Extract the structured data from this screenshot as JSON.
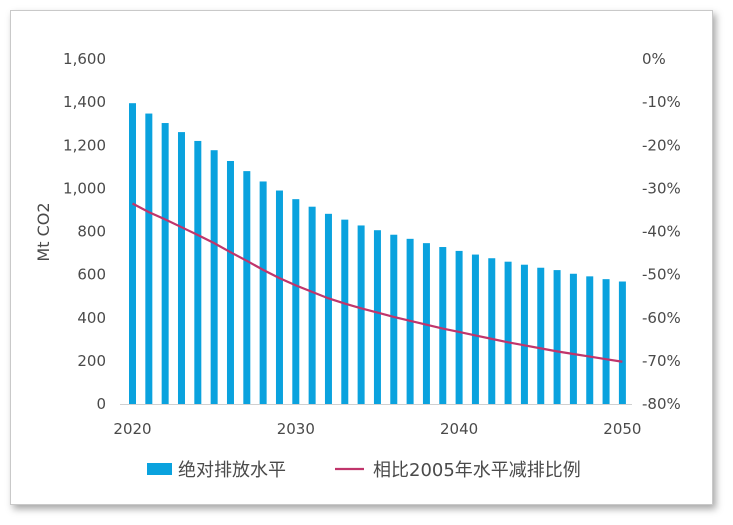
{
  "chart_data": {
    "type": "bar",
    "x": [
      2020,
      2021,
      2022,
      2023,
      2024,
      2025,
      2026,
      2027,
      2028,
      2029,
      2030,
      2031,
      2032,
      2033,
      2034,
      2035,
      2036,
      2037,
      2038,
      2039,
      2040,
      2041,
      2042,
      2043,
      2044,
      2045,
      2046,
      2047,
      2048,
      2049,
      2050
    ],
    "xticks": [
      "2020",
      "2030",
      "2040",
      "2050"
    ],
    "ylabel": "Mt CO2",
    "ylim": [
      0,
      1600
    ],
    "yticks": [
      "0",
      "200",
      "400",
      "600",
      "800",
      "1,000",
      "1,200",
      "1,400",
      "1,600"
    ],
    "y2lim": [
      -80,
      0
    ],
    "y2ticks": [
      "0%",
      "-10%",
      "-20%",
      "-30%",
      "-40%",
      "-50%",
      "-60%",
      "-70%",
      "-80%"
    ],
    "grid": false,
    "legend_position": "bottom",
    "series": [
      {
        "name": "绝对排放水平",
        "type": "bar",
        "axis": "left",
        "color": "#0aa2de",
        "values": [
          1395,
          1347,
          1303,
          1261,
          1220,
          1177,
          1127,
          1080,
          1032,
          990,
          950,
          915,
          882,
          855,
          828,
          806,
          785,
          766,
          746,
          728,
          710,
          693,
          676,
          660,
          646,
          632,
          621,
          604,
          592,
          579,
          568
        ]
      },
      {
        "name": "相比2005年水平减排比例",
        "type": "line",
        "axis": "right",
        "color": "#c0356b",
        "values": [
          -33.5,
          -35.5,
          -37.2,
          -39.0,
          -40.8,
          -42.7,
          -44.8,
          -46.8,
          -48.9,
          -50.8,
          -52.5,
          -54.0,
          -55.5,
          -56.7,
          -57.8,
          -58.8,
          -59.8,
          -60.7,
          -61.6,
          -62.5,
          -63.3,
          -64.1,
          -64.9,
          -65.7,
          -66.4,
          -67.1,
          -67.8,
          -68.4,
          -69.0,
          -69.6,
          -70.2
        ]
      }
    ]
  }
}
